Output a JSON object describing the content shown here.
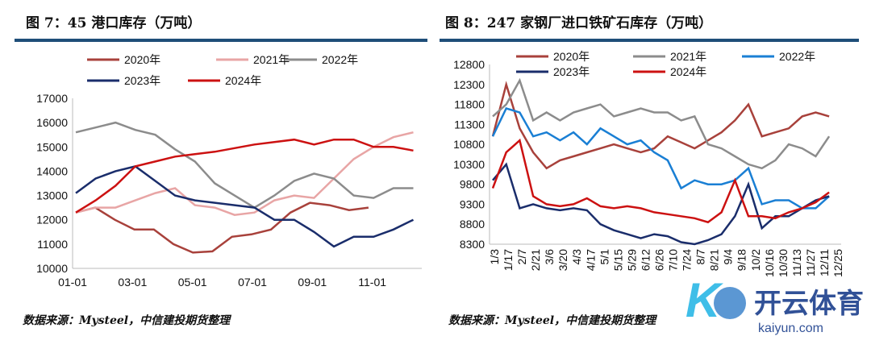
{
  "titles": {
    "left": "图 7：45 港口库存（万吨）",
    "right": "图 8：247 家钢厂进口铁矿石库存（万吨）"
  },
  "source": {
    "left": "数据来源：Mysteel，中信建投期货整理",
    "right": "数据来源：Mysteel，中信建投期货整理"
  },
  "watermark": {
    "brand": "开云体育",
    "url": "kaiyun.com"
  },
  "colors": {
    "2020年": "#a8413b",
    "2021年": "#e8a5a5",
    "2022年": "#8c8c8c",
    "2023年": "#1a2d6b",
    "2024年": "#cc1111",
    "2022年b": "#1a7fd4"
  },
  "chart_data": [
    {
      "type": "line",
      "title": "45港口库存（万吨）",
      "ylim": [
        10000,
        17000
      ],
      "yticks": [
        10000,
        11000,
        12000,
        13000,
        14000,
        15000,
        16000,
        17000
      ],
      "xticks": [
        "01-01",
        "03-01",
        "05-01",
        "07-01",
        "09-01",
        "11-01"
      ],
      "series": [
        {
          "name": "2020年",
          "color": "#a8413b",
          "values": [
            12300,
            12500,
            12000,
            11600,
            11600,
            11000,
            10650,
            10700,
            11300,
            11400,
            11600,
            12300,
            12700,
            12600,
            12400,
            12500
          ]
        },
        {
          "name": "2021年",
          "color": "#e8a5a5",
          "values": [
            12300,
            12500,
            12500,
            12800,
            13100,
            13300,
            12600,
            12500,
            12200,
            12300,
            12800,
            13000,
            12900,
            13700,
            14500,
            15000,
            15400,
            15600
          ]
        },
        {
          "name": "2022年",
          "color": "#8c8c8c",
          "values": [
            15600,
            15800,
            16000,
            15700,
            15500,
            14900,
            14400,
            13500,
            13000,
            12500,
            13000,
            13600,
            13900,
            13700,
            13000,
            12900,
            13300,
            13300
          ]
        },
        {
          "name": "2023年",
          "color": "#1a2d6b",
          "values": [
            13100,
            13700,
            14000,
            14200,
            13600,
            13000,
            12800,
            12700,
            12600,
            12500,
            12000,
            12000,
            11500,
            10900,
            11300,
            11300,
            11600,
            12000
          ]
        },
        {
          "name": "2024年",
          "color": "#cc1111",
          "values": [
            12300,
            12800,
            13400,
            14200,
            14400,
            14600,
            14700,
            14800,
            14950,
            15100,
            15200,
            15300,
            15100,
            15300,
            15300,
            15000,
            15000,
            14850
          ]
        }
      ]
    },
    {
      "type": "line",
      "title": "247家钢厂进口铁矿石库存（万吨）",
      "ylim": [
        8300,
        12800
      ],
      "yticks": [
        8300,
        8800,
        9300,
        9800,
        10300,
        10800,
        11300,
        11800,
        12300,
        12800
      ],
      "xticks": [
        "1/3",
        "1/17",
        "2/7",
        "2/21",
        "3/6",
        "3/20",
        "4/3",
        "4/17",
        "5/1",
        "5/15",
        "5/29",
        "6/12",
        "6/26",
        "7/10",
        "7/24",
        "8/7",
        "8/21",
        "9/4",
        "9/18",
        "10/2",
        "10/16",
        "10/30",
        "11/13",
        "11/27",
        "12/11",
        "12/25"
      ],
      "series": [
        {
          "name": "2020年",
          "color": "#a8413b",
          "values": [
            11000,
            12300,
            11200,
            10600,
            10200,
            10400,
            10500,
            10600,
            10700,
            10800,
            10700,
            10600,
            10700,
            11000,
            10850,
            10700,
            10900,
            11100,
            11400,
            11800,
            11000,
            11100,
            11200,
            11500,
            11600,
            11500
          ]
        },
        {
          "name": "2021年",
          "color": "#8c8c8c",
          "values": [
            11500,
            11800,
            12400,
            11400,
            11600,
            11400,
            11600,
            11700,
            11800,
            11500,
            11600,
            11700,
            11600,
            11600,
            11400,
            11500,
            10800,
            10700,
            10500,
            10300,
            10200,
            10400,
            10800,
            10700,
            10500,
            11000
          ]
        },
        {
          "name": "2022年",
          "color": "#1a7fd4",
          "values": [
            11000,
            11700,
            11600,
            11000,
            11100,
            10900,
            11100,
            10800,
            11200,
            11000,
            10800,
            10900,
            10600,
            10400,
            9700,
            9900,
            9800,
            9800,
            9900,
            10200,
            9300,
            9400,
            9400,
            9200,
            9200,
            9500
          ]
        },
        {
          "name": "2023年",
          "color": "#1a2d6b",
          "values": [
            9900,
            10300,
            9200,
            9300,
            9200,
            9150,
            9200,
            9150,
            8800,
            8650,
            8550,
            8450,
            8550,
            8500,
            8350,
            8300,
            8400,
            8550,
            9000,
            9800,
            8700,
            9000,
            9000,
            9200,
            9400,
            9500
          ]
        },
        {
          "name": "2024年",
          "color": "#cc1111",
          "values": [
            9700,
            10600,
            10900,
            9500,
            9300,
            9250,
            9300,
            9450,
            9250,
            9200,
            9250,
            9200,
            9100,
            9050,
            9000,
            8950,
            8850,
            9100,
            9900,
            9000,
            9000,
            8950,
            9100,
            9200,
            9350,
            9600
          ]
        }
      ]
    }
  ]
}
